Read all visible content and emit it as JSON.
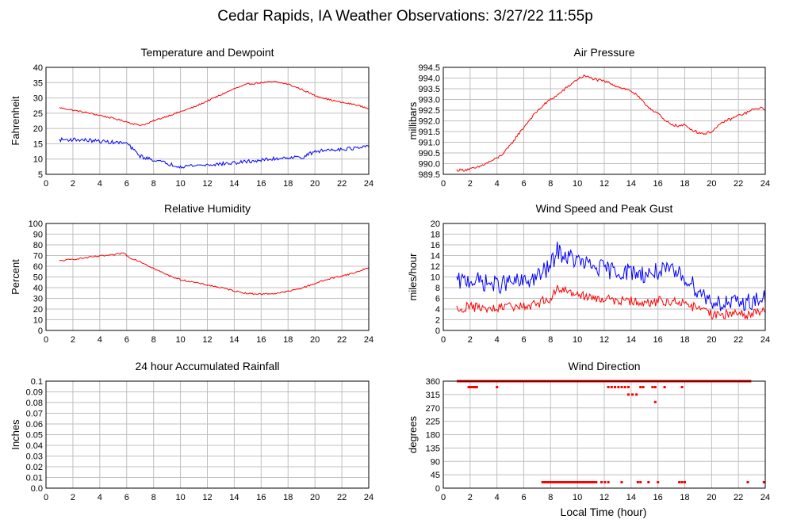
{
  "page": {
    "title": "Cedar Rapids, IA Weather Observations: 3/27/22 11:55p"
  },
  "x_axis": {
    "label": "Local Time (hour)",
    "range": [
      0,
      24
    ],
    "ticks": [
      0,
      2,
      4,
      6,
      8,
      10,
      12,
      14,
      16,
      18,
      20,
      22,
      24
    ]
  },
  "colors": {
    "red": "#ff0000",
    "blue": "#0000ff",
    "grid": "#bfbfbf",
    "frame": "#000000"
  },
  "chart_data": [
    {
      "id": "temp",
      "type": "line",
      "title": "Temperature and Dewpoint",
      "ylabel": "Fahrenheit",
      "ylim": [
        5,
        40
      ],
      "yticks": [
        "5",
        "10",
        "15",
        "20",
        "25",
        "30",
        "35",
        "40"
      ],
      "series": [
        {
          "color": "#ff0000",
          "x": [
            1,
            2,
            3,
            4,
            5,
            6,
            6.5,
            7,
            7.5,
            8,
            9,
            10,
            11,
            12,
            13,
            14,
            15,
            16,
            17,
            18,
            19,
            20,
            21,
            22,
            23,
            24
          ],
          "y": [
            26.8,
            26.0,
            25.2,
            24.3,
            23.3,
            22.2,
            21.5,
            21.1,
            21.5,
            22.5,
            24.0,
            25.5,
            27.0,
            29.0,
            31.0,
            33.0,
            34.5,
            35.0,
            35.3,
            34.5,
            32.8,
            30.8,
            29.5,
            28.5,
            27.8,
            26.5
          ],
          "jitter": 0.25
        },
        {
          "color": "#0000ff",
          "x": [
            1,
            2,
            3,
            4,
            5,
            6,
            6.5,
            7,
            7.5,
            8,
            9,
            10,
            11,
            12,
            13,
            14,
            15,
            16,
            17,
            18,
            19,
            20,
            21,
            22,
            23,
            24
          ],
          "y": [
            16.3,
            16.4,
            16.2,
            15.8,
            15.5,
            15.2,
            13.0,
            11.0,
            10.2,
            9.8,
            8.5,
            7.6,
            7.9,
            8.1,
            8.4,
            8.7,
            9.2,
            9.6,
            10.1,
            10.6,
            10.5,
            12.4,
            13.0,
            13.3,
            13.5,
            14.0
          ],
          "jitter": 0.6
        }
      ]
    },
    {
      "id": "pressure",
      "type": "line",
      "title": "Air Pressure",
      "ylabel": "millibars",
      "ylim": [
        989.5,
        994.5
      ],
      "yticks": [
        "989.5",
        "990.0",
        "990.5",
        "991.0",
        "991.5",
        "992.0",
        "992.5",
        "993.0",
        "993.5",
        "994.0",
        "994.5"
      ],
      "series": [
        {
          "color": "#ff0000",
          "x": [
            1,
            1.5,
            2,
            2.5,
            3,
            3.5,
            4,
            4.5,
            5,
            5.5,
            6,
            6.5,
            7,
            7.5,
            8,
            8.5,
            9,
            9.5,
            10,
            10.5,
            11,
            11.5,
            12,
            12.5,
            13,
            13.5,
            14,
            14.5,
            15,
            15.5,
            16,
            16.5,
            17,
            17.5,
            18,
            18.5,
            19,
            19.5,
            20,
            20.5,
            21,
            21.5,
            22,
            22.5,
            23,
            23.5,
            24
          ],
          "y": [
            989.7,
            989.7,
            989.75,
            989.8,
            989.95,
            990.1,
            990.25,
            990.5,
            990.85,
            991.3,
            991.7,
            992.1,
            992.45,
            992.75,
            993.0,
            993.2,
            993.45,
            993.7,
            993.95,
            994.1,
            994.0,
            993.9,
            993.85,
            993.75,
            993.6,
            993.5,
            993.4,
            993.15,
            992.8,
            992.55,
            992.35,
            992.0,
            991.85,
            991.75,
            991.8,
            991.6,
            991.45,
            991.4,
            991.5,
            991.75,
            992.0,
            992.1,
            992.25,
            992.35,
            992.5,
            992.6,
            992.55
          ],
          "jitter": 0.06
        }
      ]
    },
    {
      "id": "rh",
      "type": "line",
      "title": "Relative Humidity",
      "ylabel": "Percent",
      "ylim": [
        0,
        100
      ],
      "yticks": [
        "0",
        "10",
        "20",
        "30",
        "40",
        "50",
        "60",
        "70",
        "80",
        "90",
        "100"
      ],
      "series": [
        {
          "color": "#ff0000",
          "x": [
            1,
            2,
            3,
            4,
            5,
            5.8,
            6.2,
            7,
            8,
            9,
            10,
            11,
            12,
            13,
            14,
            15,
            16,
            17,
            18,
            19,
            20,
            21,
            22,
            23,
            24
          ],
          "y": [
            65,
            66.5,
            68,
            69.5,
            70.5,
            72.5,
            68,
            64.5,
            58,
            52,
            47.5,
            45,
            42.5,
            40,
            37,
            34.5,
            34,
            34.5,
            36.5,
            39.5,
            44,
            48,
            51,
            54,
            59
          ],
          "jitter": 0.7
        }
      ]
    },
    {
      "id": "wind",
      "type": "line",
      "title": "Wind Speed and Peak Gust",
      "ylabel": "miles/hour",
      "ylim": [
        0,
        20
      ],
      "yticks": [
        "0",
        "2",
        "4",
        "6",
        "8",
        "10",
        "12",
        "14",
        "16",
        "18",
        "20"
      ],
      "series": [
        {
          "color": "#0000ff",
          "x": [
            1,
            2,
            3,
            4,
            5,
            6,
            7,
            8,
            8.5,
            9,
            10,
            11,
            12,
            13,
            14,
            15,
            16,
            17,
            18,
            19,
            20,
            21,
            22,
            23,
            24
          ],
          "y": [
            9,
            9.5,
            9,
            8.5,
            9,
            9,
            10,
            12,
            15,
            14,
            13,
            12,
            11.5,
            11,
            11,
            10.5,
            11,
            11,
            10,
            7.5,
            5.5,
            5,
            5,
            5.5,
            6
          ],
          "jitter": 1.7
        },
        {
          "color": "#ff0000",
          "x": [
            1,
            2,
            3,
            4,
            5,
            6,
            7,
            8,
            8.5,
            9,
            10,
            11,
            12,
            13,
            14,
            15,
            16,
            17,
            18,
            19,
            20,
            21,
            22,
            23,
            24
          ],
          "y": [
            4,
            4.5,
            4,
            4,
            4.5,
            4.5,
            5,
            6,
            8,
            7.5,
            7,
            6,
            6,
            5.5,
            5.5,
            5,
            5.5,
            5.5,
            5,
            4,
            3,
            3,
            3,
            3,
            3.5
          ],
          "jitter": 0.9
        }
      ]
    },
    {
      "id": "rain",
      "type": "line",
      "title": "24 hour Accumulated Rainfall",
      "ylabel": "Inches",
      "ylim": [
        0,
        0.1
      ],
      "yticks": [
        "0.0",
        "0.01",
        "0.02",
        "0.03",
        "0.04",
        "0.05",
        "0.06",
        "0.07",
        "0.08",
        "0.09",
        "0.1"
      ],
      "series": [
        {
          "color": "#ff0000",
          "x": [
            1,
            24
          ],
          "y": [
            0,
            0
          ],
          "jitter": 0
        }
      ]
    },
    {
      "id": "dir",
      "type": "scatter",
      "title": "Wind Direction",
      "ylabel": "degrees",
      "ylim": [
        0,
        360
      ],
      "yticks": [
        "0",
        "45",
        "90",
        "135",
        "180",
        "225",
        "270",
        "315",
        "360"
      ],
      "series": [
        {
          "color": "#ff0000",
          "points": [
            [
              1.1,
              360,
              22.9,
              0.07
            ],
            [
              1.9,
              340,
              2.5,
              0.1
            ],
            [
              4.0,
              340,
              4.0,
              0.1
            ],
            [
              12.3,
              340,
              13.9,
              0.25
            ],
            [
              14.7,
              340,
              14.9,
              0.2
            ],
            [
              15.6,
              340,
              15.8,
              0.2
            ],
            [
              16.5,
              340,
              16.5,
              0.1
            ],
            [
              17.8,
              340,
              17.8,
              0.1
            ],
            [
              13.8,
              315,
              14.6,
              0.3
            ],
            [
              15.8,
              290,
              15.8,
              0.1
            ],
            [
              7.4,
              20,
              11.4,
              0.1
            ],
            [
              11.8,
              20,
              12.4,
              0.25
            ],
            [
              13.3,
              20,
              13.3,
              0.1
            ],
            [
              14.5,
              20,
              14.8,
              0.2
            ],
            [
              15.3,
              20,
              15.3,
              0.1
            ],
            [
              16.0,
              20,
              16.0,
              0.1
            ],
            [
              17.6,
              20,
              18.0,
              0.2
            ],
            [
              22.7,
              20,
              22.7,
              0.1
            ],
            [
              23.9,
              20,
              23.9,
              0.1
            ]
          ]
        }
      ]
    }
  ]
}
